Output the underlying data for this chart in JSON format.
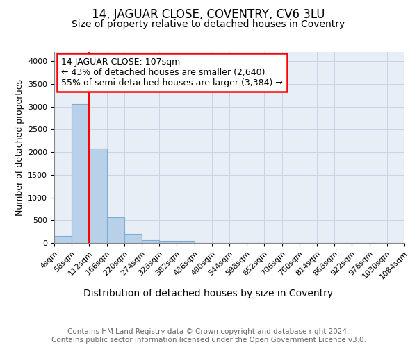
{
  "title": "14, JAGUAR CLOSE, COVENTRY, CV6 3LU",
  "subtitle": "Size of property relative to detached houses in Coventry",
  "xlabel": "Distribution of detached houses by size in Coventry",
  "ylabel": "Number of detached properties",
  "bin_edges": [
    4,
    58,
    112,
    166,
    220,
    274,
    328,
    382,
    436,
    490,
    544,
    598,
    652,
    706,
    760,
    814,
    868,
    922,
    976,
    1030,
    1084
  ],
  "bin_labels": [
    "4sqm",
    "58sqm",
    "112sqm",
    "166sqm",
    "220sqm",
    "274sqm",
    "328sqm",
    "382sqm",
    "436sqm",
    "490sqm",
    "544sqm",
    "598sqm",
    "652sqm",
    "706sqm",
    "760sqm",
    "814sqm",
    "868sqm",
    "922sqm",
    "976sqm",
    "1030sqm",
    "1084sqm"
  ],
  "bar_heights": [
    150,
    3060,
    2070,
    560,
    205,
    65,
    45,
    45,
    0,
    0,
    0,
    0,
    0,
    0,
    0,
    0,
    0,
    0,
    0,
    0
  ],
  "bar_color": "#b8d0e8",
  "bar_edge_color": "#7aaed6",
  "red_line_x": 112,
  "annotation_text": "14 JAGUAR CLOSE: 107sqm\n← 43% of detached houses are smaller (2,640)\n55% of semi-detached houses are larger (3,384) →",
  "annotation_box_color": "white",
  "annotation_box_edge_color": "red",
  "ylim": [
    0,
    4200
  ],
  "background_color": "#e8eef6",
  "footer_text": "Contains HM Land Registry data © Crown copyright and database right 2024.\nContains public sector information licensed under the Open Government Licence v3.0.",
  "title_fontsize": 12,
  "subtitle_fontsize": 10,
  "ylabel_fontsize": 9,
  "xlabel_fontsize": 10,
  "tick_fontsize": 8,
  "footer_fontsize": 7.5,
  "annot_fontsize": 9
}
